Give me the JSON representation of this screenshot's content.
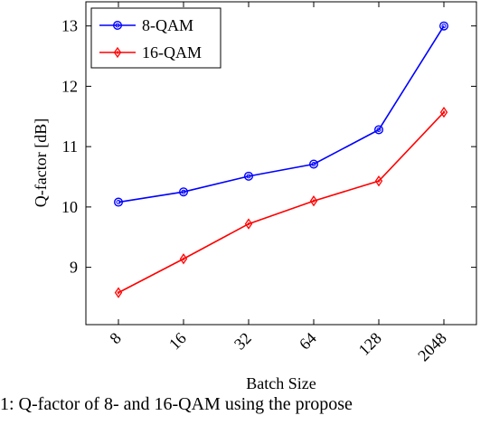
{
  "chart_data": {
    "type": "line",
    "categories": [
      "8",
      "16",
      "32",
      "64",
      "128",
      "2048"
    ],
    "xlabel": "Batch Size",
    "ylabel": "Q-factor [dB]",
    "ylim": [
      8.05,
      13.4
    ],
    "yticks": [
      9,
      10,
      11,
      12,
      13
    ],
    "grid": false,
    "legend_position": "top-left",
    "series": [
      {
        "name": "8-QAM",
        "color": "#0000ff",
        "marker": "circle",
        "values": [
          10.08,
          10.25,
          10.51,
          10.71,
          11.28,
          13.0
        ]
      },
      {
        "name": "16-QAM",
        "color": "#ff0000",
        "marker": "diamond",
        "values": [
          8.58,
          9.14,
          9.72,
          10.1,
          10.43,
          11.57
        ]
      }
    ]
  },
  "caption": "1: Q-factor of 8- and 16-QAM using the propose"
}
